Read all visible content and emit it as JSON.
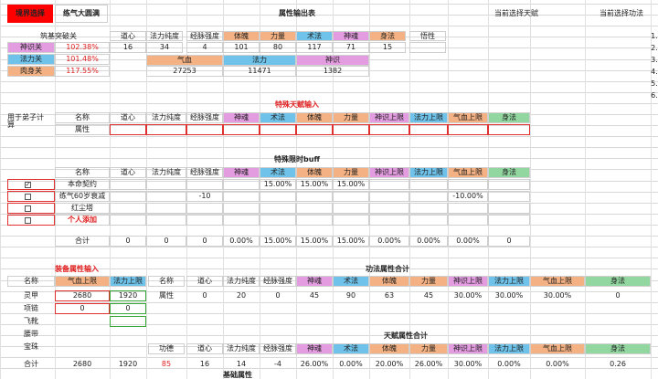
{
  "top": {
    "realm_select": "境界选择",
    "realm_value": "练气大圆满",
    "attr_table_title": "属性输出表",
    "current_talent": "当前选择天赋",
    "current_skill": "当前选择功法"
  },
  "breakthrough": {
    "title": "筑基突破关",
    "passes": [
      {
        "label": "神识关",
        "value": "102.38%"
      },
      {
        "label": "法力关",
        "value": "101.48%"
      },
      {
        "label": "肉身关",
        "value": "117.55%"
      }
    ]
  },
  "attr_output": {
    "headers": [
      "道心",
      "法力纯度",
      "经脉强度",
      "体魄",
      "力量",
      "术法",
      "神魂",
      "身法",
      "悟性"
    ],
    "values": [
      "16",
      "34",
      "4",
      "101",
      "80",
      "117",
      "71",
      "15",
      ""
    ],
    "headers2": [
      "气血",
      "法力",
      "神识"
    ],
    "values2": [
      "27253",
      "11471",
      "1382"
    ]
  },
  "side_numbers": [
    "1.",
    "2.",
    "3.",
    "4.",
    "5.",
    "6."
  ],
  "disciple": {
    "section_title": "特殊天赋输入",
    "row_label": "用于弟子计算",
    "name_header": "名称",
    "attr_label": "属性",
    "headers": [
      "道心",
      "法力纯度",
      "经脉强度",
      "神魂",
      "术法",
      "体魄",
      "力量",
      "神识上限",
      "法力上限",
      "气血上限",
      "身法"
    ]
  },
  "buff": {
    "section_title": "特殊限时buff",
    "name_header": "名称",
    "headers": [
      "道心",
      "法力纯度",
      "经脉强度",
      "神魂",
      "术法",
      "体魄",
      "力量",
      "神识上限",
      "法力上限",
      "气血上限",
      "身法"
    ],
    "rows": [
      {
        "check": "☑",
        "name": "本命契约",
        "values": [
          "",
          "",
          "",
          "",
          "15.00%",
          "15.00%",
          "15.00%",
          "",
          "",
          "",
          ""
        ]
      },
      {
        "check": "☐",
        "name": "练气60岁衰减",
        "values": [
          "",
          "",
          "-10",
          "",
          "",
          "",
          "",
          "",
          "",
          "-10.00%",
          ""
        ]
      },
      {
        "check": "☐",
        "name": "红尘塔",
        "values": [
          "",
          "",
          "",
          "",
          "",
          "",
          "",
          "",
          "",
          "",
          ""
        ]
      },
      {
        "check": "☐",
        "name": "个人添加",
        "values": [
          "",
          "",
          "",
          "",
          "",
          "",
          "",
          "",
          "",
          "",
          ""
        ]
      }
    ],
    "total_label": "合计",
    "total_values": [
      "0",
      "0",
      "0",
      "0.00%",
      "15.00%",
      "15.00%",
      "15.00%",
      "0.00%",
      "0.00%",
      "0.00%",
      "0"
    ]
  },
  "equip": {
    "section_title": "装备属性输入",
    "name_header": "名称",
    "headers": [
      "气血上限",
      "法力上限"
    ],
    "rows": [
      {
        "name": "灵甲",
        "hp": "2680",
        "mp": "1920"
      },
      {
        "name": "项链",
        "hp": "0",
        "mp": "0"
      },
      {
        "name": "飞靴",
        "hp": "",
        "mp": ""
      },
      {
        "name": "腰带",
        "hp": "",
        "mp": ""
      },
      {
        "name": "宝珠",
        "hp": "",
        "mp": ""
      }
    ],
    "total_label": "合计",
    "total_hp": "2680",
    "total_mp": "1920"
  },
  "skill_total": {
    "section_title": "功法属性合计",
    "name_header": "名称",
    "attr_label": "属性",
    "headers": [
      "道心",
      "法力纯度",
      "经脉强度",
      "神魂",
      "术法",
      "体魄",
      "力量",
      "神识上限",
      "法力上限",
      "气血上限",
      "身法"
    ],
    "values": [
      "0",
      "20",
      "0",
      "45",
      "90",
      "63",
      "45",
      "30.00%",
      "30.00%",
      "30.00%",
      "0"
    ]
  },
  "talent_total": {
    "section_title": "天赋属性合计",
    "headers": [
      "功德",
      "道心",
      "法力纯度",
      "经脉强度",
      "神魂",
      "术法",
      "体魄",
      "力量",
      "神识上限",
      "法力上限",
      "气血上限",
      "身法"
    ],
    "values": [
      "85",
      "16",
      "14",
      "-4",
      "26.00%",
      "0.00%",
      "20.00%",
      "26.00%",
      "30.00%",
      "0.00%",
      "0.00%",
      "0.26"
    ]
  },
  "base_attr": {
    "section_title": "基础属性"
  }
}
